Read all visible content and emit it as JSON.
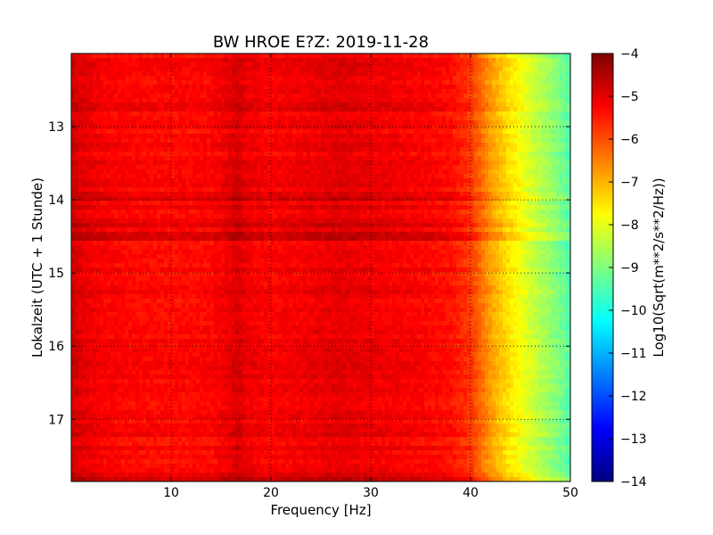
{
  "chart_data": {
    "type": "heatmap",
    "title": "BW HROE E?Z: 2019-11-28",
    "xlabel": "Frequency [Hz]",
    "ylabel": "Lokalzeit (UTC + 1 Stunde)",
    "xlim": [
      0,
      50
    ],
    "ylim": [
      17.85,
      12.0
    ],
    "x_ticks": [
      10,
      20,
      30,
      40,
      50
    ],
    "y_ticks": [
      13,
      14,
      15,
      16,
      17
    ],
    "grid": true,
    "colormap": "jet",
    "colorbar": {
      "label": "Log10(Sqrt(m**2/s**2/Hz))",
      "range": [
        -14,
        -4
      ],
      "ticks": [
        -4,
        -5,
        -6,
        -7,
        -8,
        -9,
        -10,
        -11,
        -12,
        -13,
        -14
      ],
      "placement": "right"
    },
    "spectrum_profile": {
      "frequency_hz": [
        0,
        1,
        3,
        6,
        10,
        14,
        16,
        16.7,
        17.5,
        20,
        24,
        27,
        31,
        35,
        38,
        40,
        41,
        42,
        43,
        44,
        45,
        46,
        47,
        48,
        49,
        50
      ],
      "value": [
        -4.8,
        -5.0,
        -5.2,
        -5.3,
        -5.35,
        -5.3,
        -5.05,
        -4.85,
        -5.1,
        -5.25,
        -5.1,
        -5.0,
        -5.15,
        -5.25,
        -5.4,
        -5.8,
        -6.3,
        -6.8,
        -7.2,
        -7.55,
        -7.85,
        -8.2,
        -8.5,
        -8.8,
        -9.1,
        -9.5
      ]
    },
    "time_band_offsets": {
      "hour": [
        12.2,
        12.75,
        13.95,
        14.1,
        14.3,
        14.5,
        15.5,
        16.25,
        16.6,
        17.2,
        17.8
      ],
      "offset": [
        0.2,
        0.15,
        0.25,
        0.3,
        0.22,
        0.35,
        0.1,
        0.12,
        0.15,
        0.2,
        0.35
      ]
    }
  }
}
